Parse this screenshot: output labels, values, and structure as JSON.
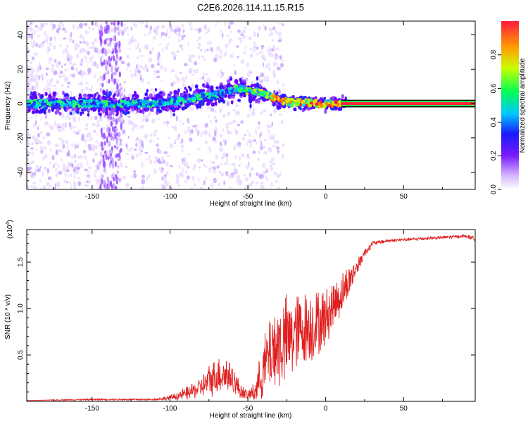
{
  "title": "C2E6.2026.114.11.15.R15",
  "chart_data": [
    {
      "type": "heatmap",
      "name": "spectrogram",
      "xlabel": "Height of straight line (km)",
      "ylabel": "Frequency (Hz)",
      "xlim": [
        -192,
        96
      ],
      "ylim": [
        -50,
        48
      ],
      "xticks": [
        -150,
        -100,
        -50,
        0,
        50
      ],
      "yticks": [
        -40,
        -20,
        0,
        20,
        40
      ],
      "ridge": {
        "x": [
          -192,
          -170,
          -150,
          -130,
          -110,
          -100,
          -90,
          -80,
          -70,
          -60,
          -55,
          -50,
          -45,
          -40,
          -35,
          -30,
          -25,
          -20,
          -15,
          -10,
          -5,
          0,
          5,
          10,
          96
        ],
        "y": [
          0,
          0,
          0,
          0,
          0,
          1,
          2,
          4,
          5,
          8,
          9,
          7,
          7,
          6,
          4,
          2,
          1,
          0.5,
          0.5,
          0.5,
          0,
          0,
          0,
          0,
          0
        ]
      },
      "colorbar": {
        "label": "Normalized spectral amplitude",
        "range": [
          0.0,
          1.0
        ],
        "ticks": [
          0.0,
          0.2,
          0.4,
          0.6,
          0.8
        ],
        "tick_labels": [
          "0.0",
          "0.2",
          "0.4",
          "0.6",
          "0.8"
        ]
      }
    },
    {
      "type": "line",
      "name": "snr",
      "xlabel": "Height of straight line (km)",
      "ylabel": "SNR (10 * v/v)",
      "scale_label": "(x10",
      "scale_exp": "4",
      "xlim": [
        -192,
        96
      ],
      "ylim": [
        0,
        1.85
      ],
      "xticks": [
        -150,
        -100,
        -50,
        0,
        50
      ],
      "yticks": [
        0.5,
        1.0,
        1.5
      ],
      "ytick_labels": [
        "0.5",
        "1.0",
        "1.5"
      ],
      "color": "#e02020",
      "x": [
        -192,
        -150,
        -110,
        -100,
        -90,
        -80,
        -75,
        -70,
        -65,
        -60,
        -55,
        -50,
        -45,
        -40,
        -35,
        -30,
        -25,
        -20,
        -15,
        -10,
        -5,
        0,
        5,
        10,
        15,
        20,
        25,
        30,
        40,
        50,
        60,
        70,
        80,
        90,
        96
      ],
      "y": [
        0.01,
        0.02,
        0.02,
        0.04,
        0.08,
        0.15,
        0.22,
        0.28,
        0.3,
        0.25,
        0.12,
        0.06,
        0.12,
        0.35,
        0.55,
        0.6,
        0.65,
        0.72,
        0.78,
        0.8,
        0.85,
        0.9,
        1.05,
        1.15,
        1.3,
        1.45,
        1.6,
        1.7,
        1.73,
        1.74,
        1.75,
        1.76,
        1.77,
        1.78,
        1.75
      ],
      "noise_amplitude": [
        0.0,
        0.01,
        0.01,
        0.03,
        0.08,
        0.12,
        0.2,
        0.22,
        0.25,
        0.18,
        0.1,
        0.05,
        0.15,
        0.35,
        0.5,
        0.55,
        0.55,
        0.5,
        0.45,
        0.45,
        0.4,
        0.35,
        0.3,
        0.25,
        0.2,
        0.1,
        0.06,
        0.03,
        0.02,
        0.02,
        0.02,
        0.02,
        0.02,
        0.02,
        0.03
      ]
    }
  ]
}
